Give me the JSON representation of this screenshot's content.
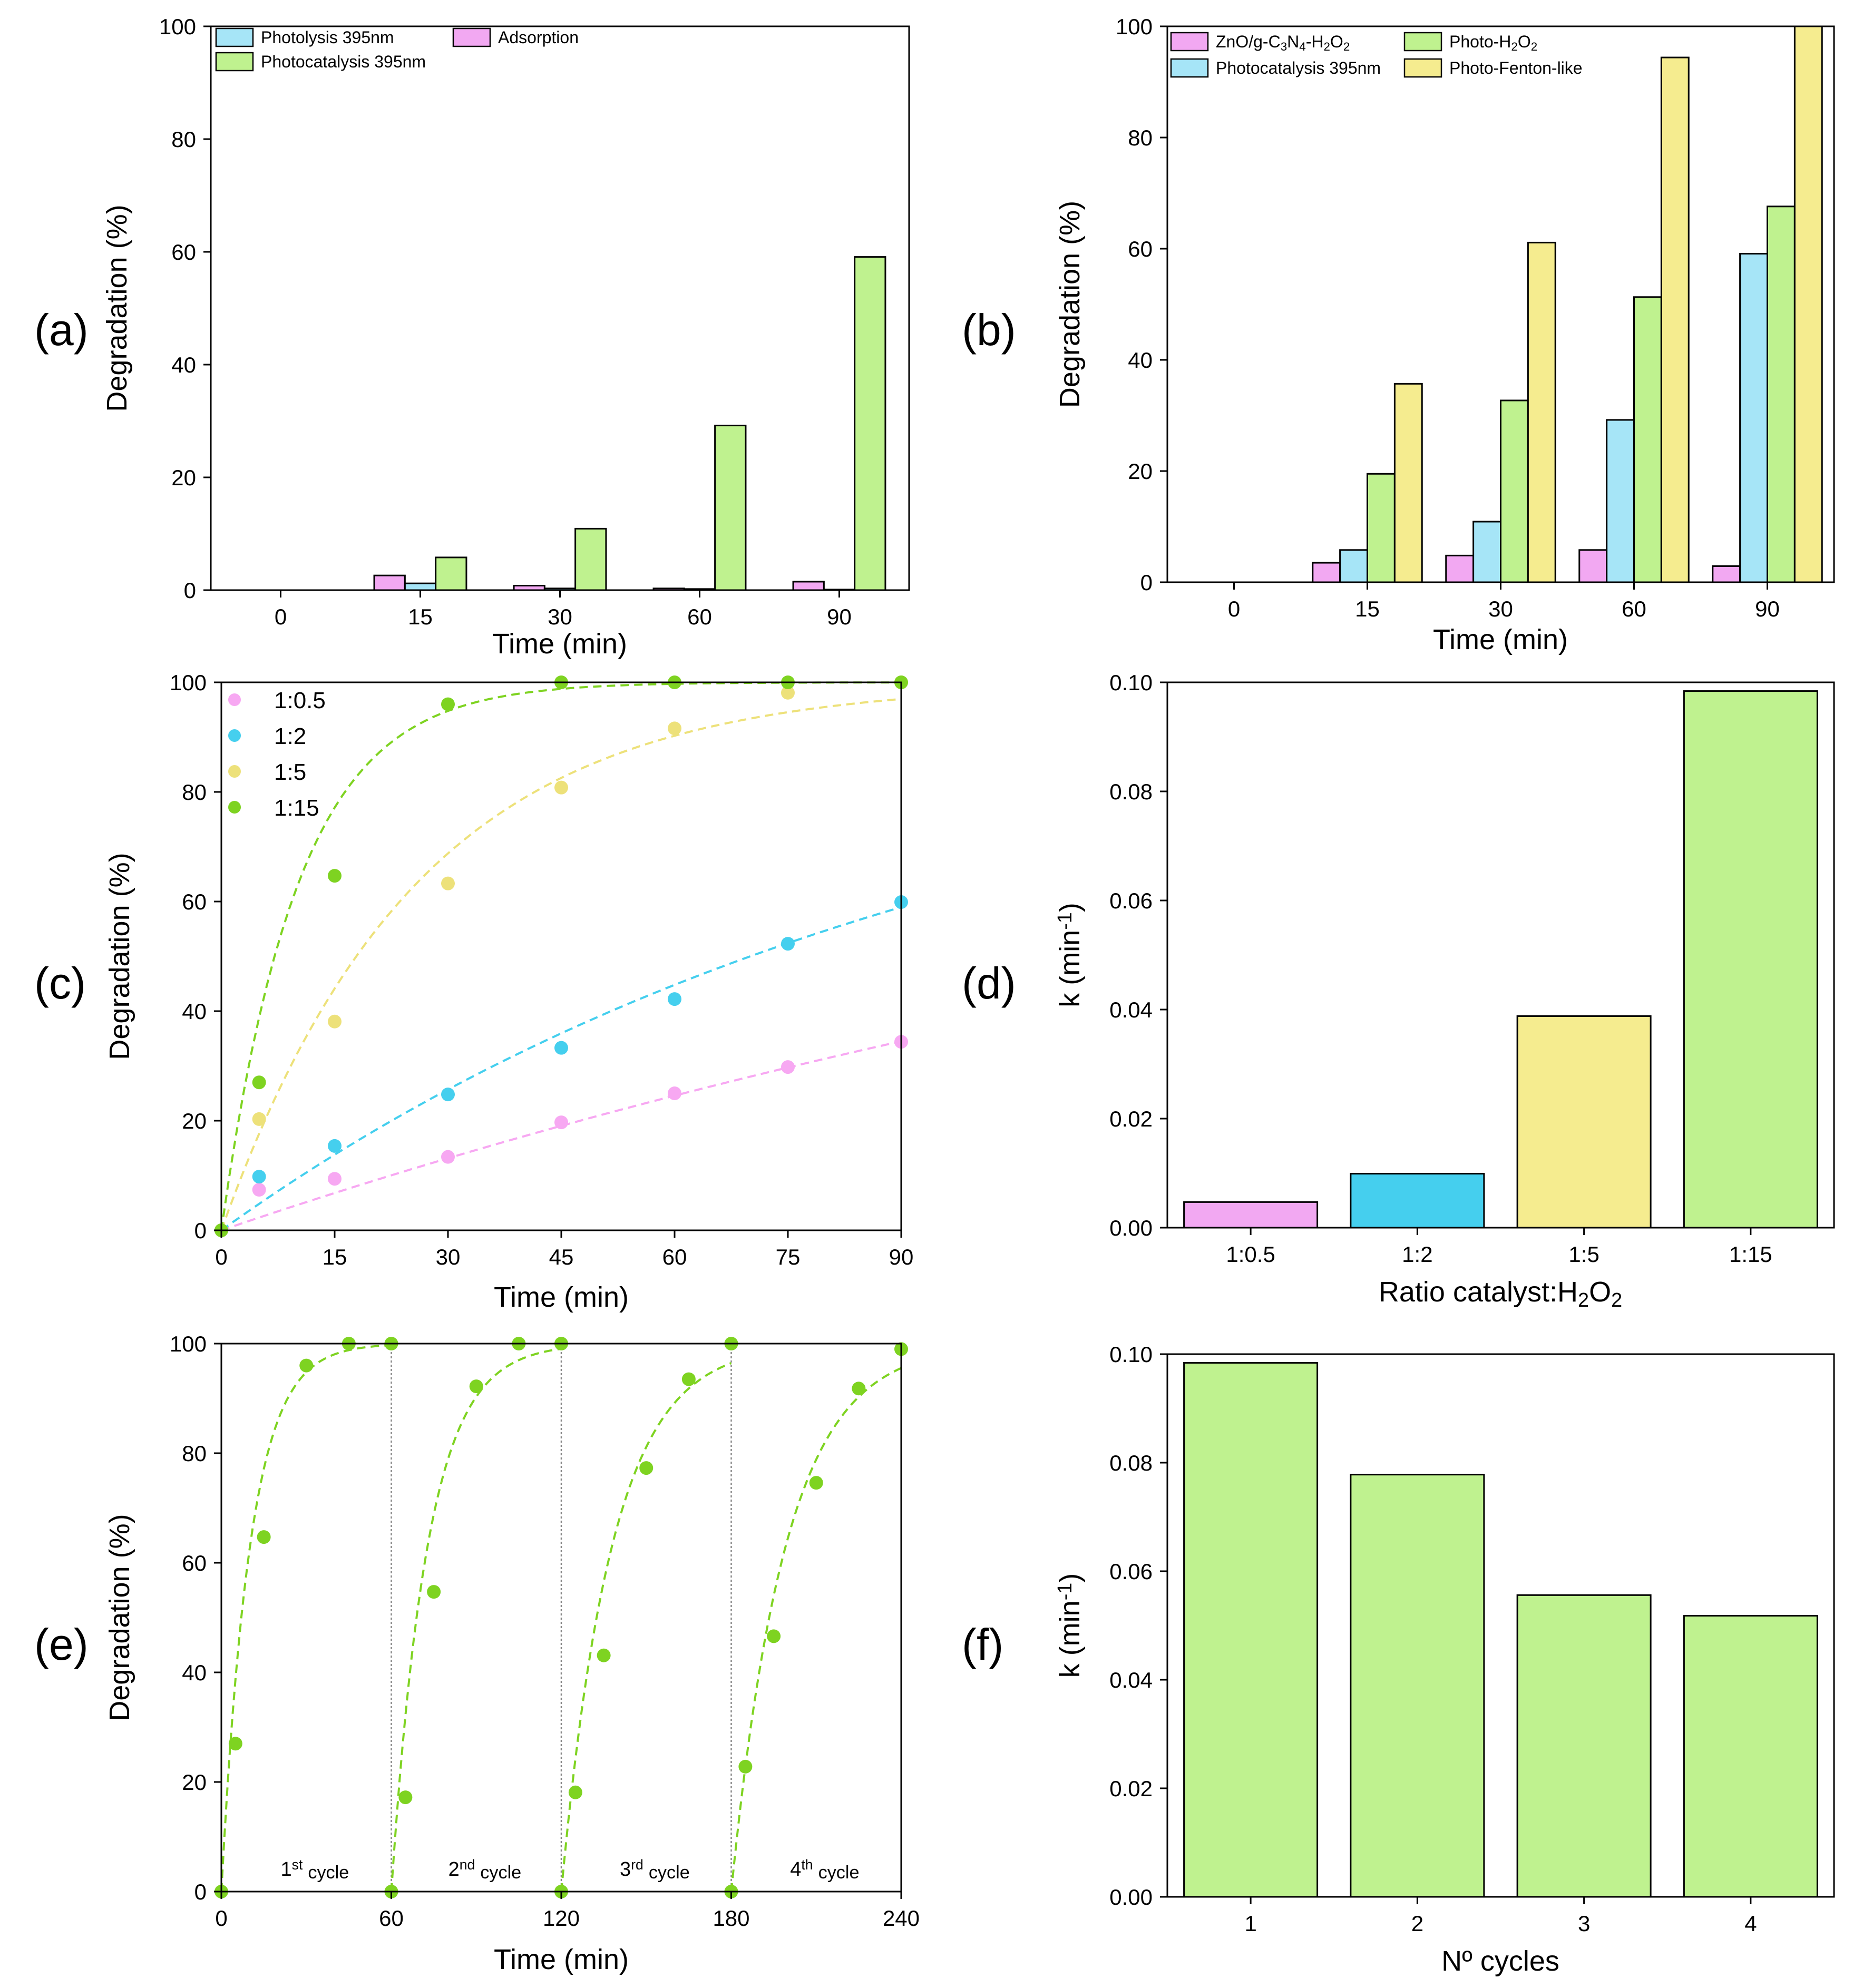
{
  "chart_data": [
    {
      "id": "a",
      "panel_label": "(a)",
      "type": "bar",
      "xlabel": "Time (min)",
      "ylabel": "Degradation (%)",
      "ylim": [
        0,
        100
      ],
      "yticks": [
        0,
        20,
        40,
        60,
        80,
        100
      ],
      "categories": [
        "0",
        "15",
        "30",
        "60",
        "90"
      ],
      "series": [
        {
          "name": "Adsorption",
          "color": "#f2a8f2",
          "values": [
            0,
            2.6,
            0.8,
            0.3,
            1.5
          ]
        },
        {
          "name": "Photolysis 395nm",
          "color": "#a6e5f7",
          "values": [
            0,
            1.2,
            0.3,
            0.2,
            0.1
          ]
        },
        {
          "name": "Photocatalysis 395nm",
          "color": "#bff28f",
          "values": [
            0,
            5.8,
            10.9,
            29.2,
            59.1
          ]
        }
      ],
      "legend": [
        "Photolysis 395nm",
        "Adsorption",
        "Photocatalysis 395nm"
      ],
      "legend_position": "top-left"
    },
    {
      "id": "b",
      "panel_label": "(b)",
      "type": "bar",
      "xlabel": "Time (min)",
      "ylabel": "Degradation (%)",
      "ylim": [
        0,
        100
      ],
      "yticks": [
        0,
        20,
        40,
        60,
        80,
        100
      ],
      "categories": [
        "0",
        "15",
        "30",
        "60",
        "90"
      ],
      "series": [
        {
          "name": "ZnO/g-C3N4-H2O2",
          "color": "#f2a8f2",
          "values": [
            0,
            3.5,
            4.8,
            5.8,
            2.9
          ]
        },
        {
          "name": "Photocatalysis 395nm",
          "color": "#a6e5f7",
          "values": [
            0,
            5.8,
            10.9,
            29.2,
            59.1
          ]
        },
        {
          "name": "Photo-H2O2",
          "color": "#bff28f",
          "values": [
            0,
            19.5,
            32.7,
            51.3,
            67.6
          ]
        },
        {
          "name": "Photo-Fenton-like",
          "color": "#f5ec8f",
          "values": [
            0,
            35.7,
            61.1,
            94.4,
            100
          ]
        }
      ],
      "legend": [
        "ZnO/g-C3N4-H2O2",
        "Photo-H2O2",
        "Photocatalysis 395nm",
        "Photo-Fenton-like"
      ],
      "legend_position": "top-left"
    },
    {
      "id": "c",
      "panel_label": "(c)",
      "type": "scatter",
      "xlabel": "Time (min)",
      "ylabel": "Degradation (%)",
      "xlim": [
        0,
        90
      ],
      "ylim": [
        0,
        100
      ],
      "xticks": [
        0,
        15,
        30,
        45,
        60,
        75,
        90
      ],
      "yticks": [
        0,
        20,
        40,
        60,
        80,
        100
      ],
      "x": [
        0,
        5,
        15,
        30,
        45,
        60,
        75,
        90
      ],
      "series": [
        {
          "name": "1:0.5",
          "color": "#f7a8f2",
          "k": 0.0047,
          "values": [
            0,
            7.4,
            9.4,
            13.4,
            19.7,
            25.0,
            29.8,
            34.4
          ]
        },
        {
          "name": "1:2",
          "color": "#45cfee",
          "k": 0.0099,
          "values": [
            0,
            9.8,
            15.4,
            24.8,
            33.3,
            42.2,
            52.3,
            59.9
          ]
        },
        {
          "name": "1:5",
          "color": "#ede17a",
          "k": 0.0388,
          "values": [
            0,
            20.3,
            38.1,
            63.3,
            80.8,
            91.6,
            98.1,
            100
          ]
        },
        {
          "name": "1:15",
          "color": "#7ed321",
          "k": 0.0984,
          "values": [
            0,
            27.0,
            64.7,
            96.0,
            100,
            100,
            100,
            100
          ]
        }
      ],
      "legend_position": "top-left"
    },
    {
      "id": "d",
      "panel_label": "(d)",
      "type": "bar",
      "xlabel": "Ratio catalyst:H2O2",
      "ylabel": "k (min-1)",
      "ylim": [
        0,
        0.1
      ],
      "yticks": [
        "0.00",
        "0.02",
        "0.04",
        "0.06",
        "0.08",
        "0.10"
      ],
      "categories": [
        "1:0.5",
        "1:2",
        "1:5",
        "1:15"
      ],
      "values": [
        0.0047,
        0.0099,
        0.0388,
        0.0984
      ],
      "colors": [
        "#f2a8f2",
        "#45cfee",
        "#f5ec8f",
        "#bff28f"
      ]
    },
    {
      "id": "e",
      "panel_label": "(e)",
      "type": "scatter",
      "xlabel": "Time (min)",
      "ylabel": "Degradation (%)",
      "xlim": [
        0,
        240
      ],
      "ylim": [
        0,
        100
      ],
      "xticks": [
        0,
        60,
        120,
        180,
        240
      ],
      "yticks": [
        0,
        20,
        40,
        60,
        80,
        100
      ],
      "color": "#7ed321",
      "cycles": [
        {
          "label": "1",
          "suffix": "st",
          "word": "cycle",
          "k": 0.0984,
          "x": [
            0,
            5,
            15,
            30,
            45,
            60
          ],
          "values": [
            0,
            27.0,
            64.7,
            96.0,
            100,
            100
          ]
        },
        {
          "label": "2",
          "suffix": "nd",
          "word": "cycle",
          "k": 0.0778,
          "x": [
            60,
            65,
            75,
            90,
            105,
            120
          ],
          "values": [
            0,
            17.2,
            54.7,
            92.2,
            100,
            100
          ]
        },
        {
          "label": "3",
          "suffix": "rd",
          "word": "cycle",
          "k": 0.0556,
          "x": [
            120,
            125,
            135,
            150,
            165,
            180
          ],
          "values": [
            0,
            18.1,
            43.1,
            77.3,
            93.5,
            100
          ]
        },
        {
          "label": "4",
          "suffix": "th",
          "word": "cycle",
          "k": 0.0518,
          "x": [
            180,
            185,
            195,
            210,
            225,
            240
          ],
          "values": [
            0,
            22.8,
            46.6,
            74.6,
            91.8,
            99.0
          ]
        }
      ]
    },
    {
      "id": "f",
      "panel_label": "(f)",
      "type": "bar",
      "xlabel": "Nº cycles",
      "ylabel": "k (min-1)",
      "ylim": [
        0,
        0.1
      ],
      "yticks": [
        "0.00",
        "0.02",
        "0.04",
        "0.06",
        "0.08",
        "0.10"
      ],
      "categories": [
        "1",
        "2",
        "3",
        "4"
      ],
      "values": [
        0.0984,
        0.0778,
        0.0556,
        0.0518
      ],
      "colors": [
        "#bff28f",
        "#bff28f",
        "#bff28f",
        "#bff28f"
      ]
    }
  ]
}
